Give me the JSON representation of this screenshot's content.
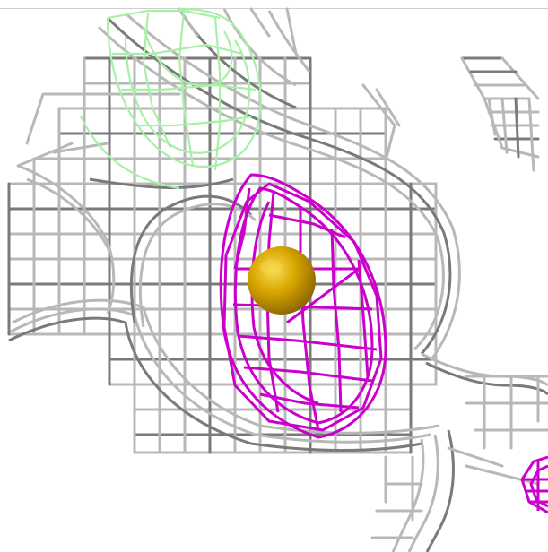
{
  "scene": {
    "background": "#ffffff",
    "colors": {
      "grey_mesh": "#b8b8b8",
      "grey_mesh_dark": "#7a7a7a",
      "green_mesh": "#a8f0a8",
      "magenta_mesh": "#cc00cc",
      "atom_sphere": "#d4a300",
      "atom_highlight": "#f5d44a"
    },
    "objects": [
      "grey-density-mesh",
      "green-density-mesh",
      "magenta-density-mesh",
      "gold-atom-sphere"
    ]
  }
}
